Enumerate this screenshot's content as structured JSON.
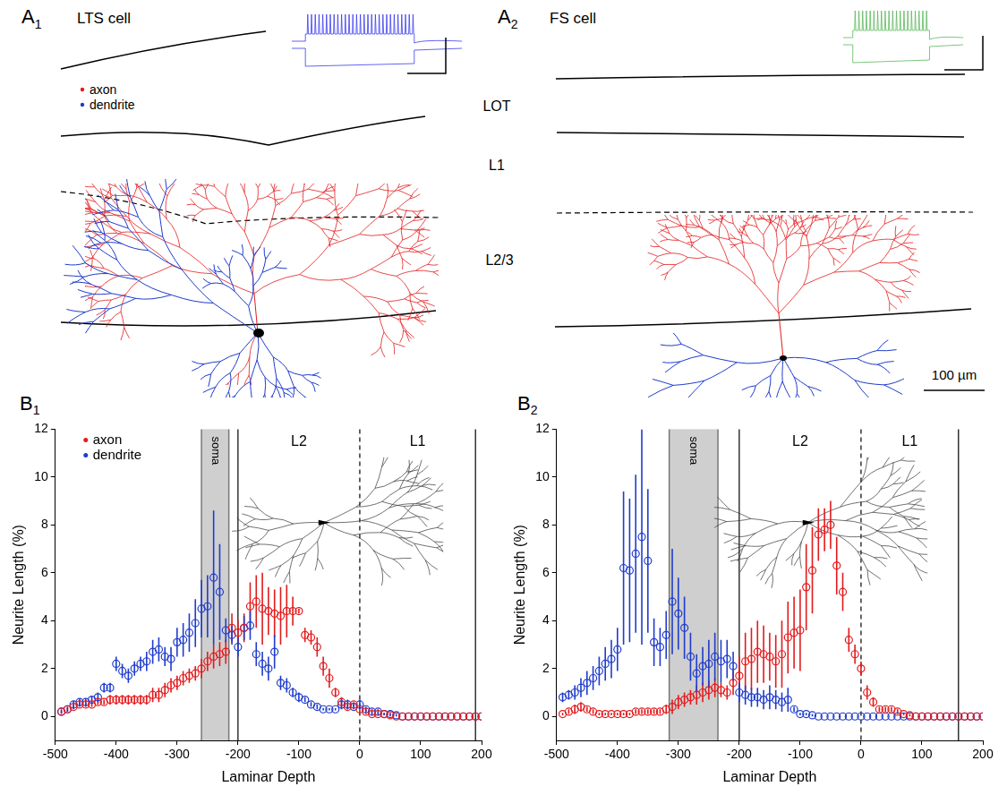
{
  "figure": {
    "panels": [
      {
        "label": "A1",
        "title": "LTS cell",
        "key": [
          {
            "label": "axon",
            "color": "#e31a1c"
          },
          {
            "label": "dendrite",
            "color": "#1f3ccc"
          }
        ]
      },
      {
        "label": "A2",
        "title": "FS cell"
      }
    ],
    "layers": [
      "LOT",
      "L1",
      "L2/3"
    ],
    "scale_bar": "100 µm"
  },
  "chart_data": [
    {
      "type": "scatter",
      "panel": "B1",
      "xlabel": "Laminar Depth",
      "ylabel": "Neurite Length (%)",
      "xlim": [
        -500,
        200
      ],
      "xticks": [
        -500,
        -400,
        -300,
        -200,
        -100,
        0,
        100,
        200
      ],
      "ylim": [
        -1,
        12
      ],
      "yticks": [
        0,
        2,
        4,
        6,
        8,
        10,
        12
      ],
      "grid": false,
      "legend": "upper left",
      "bands": [
        {
          "label": "soma",
          "range": [
            -260,
            -215
          ]
        }
      ],
      "boundaries": [
        {
          "x": -200,
          "line_style": "solid"
        },
        {
          "x": 0,
          "line_style": "dashed"
        },
        {
          "x": 190,
          "line_style": "solid"
        }
      ],
      "layers": [
        "L2",
        "L1"
      ],
      "x": [
        -490,
        -480,
        -470,
        -460,
        -450,
        -440,
        -430,
        -420,
        -410,
        -400,
        -390,
        -380,
        -370,
        -360,
        -350,
        -340,
        -330,
        -320,
        -310,
        -300,
        -290,
        -280,
        -270,
        -260,
        -250,
        -240,
        -230,
        -220,
        -210,
        -200,
        -190,
        -180,
        -170,
        -160,
        -150,
        -140,
        -130,
        -120,
        -110,
        -100,
        -90,
        -80,
        -70,
        -60,
        -50,
        -40,
        -30,
        -20,
        -10,
        0,
        10,
        20,
        30,
        40,
        50,
        60,
        70,
        80,
        90,
        100,
        110,
        120,
        130,
        140,
        150,
        160,
        170,
        180,
        190,
        200
      ],
      "series": [
        {
          "name": "axon",
          "color": "#e31a1c",
          "marker": "circle",
          "values": [
            0.2,
            0.3,
            0.4,
            0.5,
            0.5,
            0.5,
            0.6,
            0.6,
            0.7,
            0.7,
            0.7,
            0.7,
            0.7,
            0.7,
            0.7,
            0.9,
            0.9,
            1.1,
            1.3,
            1.4,
            1.6,
            1.7,
            1.8,
            2.0,
            2.3,
            2.5,
            2.6,
            2.7,
            3.7,
            3.5,
            3.7,
            4.6,
            4.8,
            4.5,
            4.4,
            4.3,
            4.2,
            4.4,
            4.4,
            4.4,
            3.4,
            3.3,
            2.9,
            2.1,
            1.6,
            1.0,
            0.6,
            0.4,
            0.5,
            0.3,
            0.2,
            0.1,
            0.1,
            0.1,
            0.05,
            0,
            0,
            0,
            0,
            0,
            0,
            0,
            0,
            0,
            0,
            0,
            0,
            0,
            0,
            0
          ],
          "errors": [
            0.05,
            0.1,
            0.1,
            0.1,
            0.1,
            0.1,
            0.1,
            0.1,
            0.2,
            0.2,
            0.2,
            0.2,
            0.2,
            0.2,
            0.2,
            0.3,
            0.3,
            0.3,
            0.3,
            0.3,
            0.3,
            0.3,
            0.3,
            0.4,
            0.4,
            0.5,
            0.5,
            0.5,
            0.6,
            0.5,
            0.6,
            1.0,
            1.1,
            1.5,
            1.0,
            1.0,
            1.2,
            1.1,
            0.6,
            0.1,
            0.3,
            0.3,
            0.4,
            0.4,
            0.4,
            0.2,
            0.2,
            0.1,
            0.1,
            0.1,
            0.1,
            0.05,
            0.05,
            0.05,
            0.05,
            0,
            0,
            0,
            0,
            0,
            0,
            0,
            0,
            0,
            0,
            0,
            0,
            0,
            0,
            0
          ]
        },
        {
          "name": "dendrite",
          "color": "#1f3ccc",
          "marker": "circle",
          "values": [
            0.2,
            0.3,
            0.5,
            0.6,
            0.6,
            0.7,
            0.8,
            1.2,
            1.2,
            2.2,
            1.9,
            1.7,
            2.0,
            2.2,
            2.3,
            2.7,
            2.8,
            2.5,
            2.4,
            3.1,
            3.2,
            3.5,
            3.9,
            4.5,
            4.6,
            5.8,
            5.2,
            3.6,
            3.4,
            2.9,
            3.7,
            3.8,
            2.6,
            2.2,
            2.0,
            2.7,
            1.4,
            1.3,
            1.0,
            0.8,
            0.7,
            0.5,
            0.4,
            0.3,
            0.3,
            0.3,
            0.5,
            0.5,
            0.4,
            0.5,
            0.3,
            0.2,
            0.2,
            0.1,
            0.1,
            0.05,
            0,
            0,
            0,
            0,
            0,
            0,
            0,
            0,
            0,
            0,
            0,
            0,
            0,
            0
          ],
          "errors": [
            0.1,
            0.1,
            0.15,
            0.15,
            0.15,
            0.15,
            0.2,
            0.2,
            0.2,
            0.3,
            0.3,
            0.3,
            0.3,
            0.3,
            0.4,
            0.5,
            0.5,
            0.4,
            0.5,
            0.6,
            0.7,
            0.8,
            1.0,
            1.2,
            1.3,
            2.8,
            2.0,
            0.5,
            0.4,
            0.4,
            0.5,
            0.6,
            0.5,
            0.5,
            0.5,
            0.7,
            0.3,
            0.3,
            0.2,
            0.2,
            0.1,
            0.1,
            0.1,
            0.05,
            0.05,
            0.05,
            0.2,
            0.2,
            0.1,
            0.2,
            0.1,
            0.1,
            0.1,
            0.05,
            0.05,
            0.05,
            0,
            0,
            0,
            0,
            0,
            0,
            0,
            0,
            0,
            0,
            0,
            0,
            0,
            0
          ]
        }
      ]
    },
    {
      "type": "scatter",
      "panel": "B2",
      "xlabel": "Laminar Depth",
      "ylabel": "Neurite Length (%)",
      "xlim": [
        -500,
        200
      ],
      "xticks": [
        -500,
        -400,
        -300,
        -200,
        -100,
        0,
        100,
        200
      ],
      "ylim": [
        -1,
        12
      ],
      "yticks": [
        0,
        2,
        4,
        6,
        8,
        10,
        12
      ],
      "grid": false,
      "bands": [
        {
          "label": "soma",
          "range": [
            -315,
            -235
          ]
        }
      ],
      "boundaries": [
        {
          "x": -200,
          "line_style": "solid"
        },
        {
          "x": 0,
          "line_style": "dashed"
        },
        {
          "x": 160,
          "line_style": "solid"
        }
      ],
      "layers": [
        "L2",
        "L1"
      ],
      "x": [
        -490,
        -480,
        -470,
        -460,
        -450,
        -440,
        -430,
        -420,
        -410,
        -400,
        -390,
        -380,
        -370,
        -360,
        -350,
        -340,
        -330,
        -320,
        -310,
        -300,
        -290,
        -280,
        -270,
        -260,
        -250,
        -240,
        -230,
        -220,
        -210,
        -200,
        -190,
        -180,
        -170,
        -160,
        -150,
        -140,
        -130,
        -120,
        -110,
        -100,
        -90,
        -80,
        -70,
        -60,
        -50,
        -40,
        -30,
        -20,
        -10,
        0,
        10,
        20,
        30,
        40,
        50,
        60,
        70,
        80,
        90,
        100,
        110,
        120,
        130,
        140,
        150,
        160,
        170,
        180,
        190,
        200
      ],
      "series": [
        {
          "name": "axon",
          "color": "#e31a1c",
          "marker": "circle",
          "values": [
            0.1,
            0.2,
            0.3,
            0.4,
            0.3,
            0.2,
            0.1,
            0.1,
            0.1,
            0.1,
            0.1,
            0.1,
            0.2,
            0.2,
            0.2,
            0.2,
            0.2,
            0.3,
            0.4,
            0.6,
            0.7,
            0.8,
            0.9,
            1.0,
            1.1,
            1.2,
            1.1,
            1.0,
            1.4,
            1.7,
            2.3,
            2.4,
            2.7,
            2.6,
            2.5,
            2.3,
            2.6,
            3.3,
            3.5,
            3.6,
            5.4,
            6.1,
            7.6,
            7.8,
            8.0,
            6.3,
            5.2,
            3.2,
            2.6,
            2.0,
            1.0,
            0.6,
            0.3,
            0.3,
            0.3,
            0.2,
            0.1,
            0.05,
            0,
            0,
            0,
            0,
            0,
            0,
            0,
            0,
            0,
            0,
            0,
            0
          ],
          "errors": [
            0.05,
            0.1,
            0.2,
            0.2,
            0.1,
            0.1,
            0.05,
            0.05,
            0.05,
            0.05,
            0.05,
            0.05,
            0.1,
            0.1,
            0.1,
            0.1,
            0.1,
            0.2,
            0.3,
            0.3,
            0.3,
            0.3,
            0.4,
            0.4,
            0.4,
            0.4,
            0.3,
            0.3,
            0.5,
            0.8,
            1.2,
            1.3,
            1.3,
            1.2,
            1.0,
            1.1,
            1.4,
            1.5,
            1.5,
            1.7,
            1.8,
            1.8,
            1.1,
            0.9,
            1.0,
            1.2,
            0.8,
            0.5,
            0.4,
            0.3,
            0.3,
            0.2,
            0.1,
            0.1,
            0.1,
            0.1,
            0.05,
            0.05,
            0,
            0,
            0,
            0,
            0,
            0,
            0,
            0,
            0,
            0,
            0,
            0
          ]
        },
        {
          "name": "dendrite",
          "color": "#1f3ccc",
          "marker": "circle",
          "values": [
            0.8,
            0.9,
            1.0,
            1.2,
            1.4,
            1.6,
            1.9,
            2.2,
            2.4,
            2.8,
            6.2,
            6.1,
            6.8,
            7.5,
            6.5,
            3.1,
            2.9,
            3.4,
            4.8,
            4.3,
            3.7,
            2.5,
            1.8,
            2.1,
            2.2,
            2.5,
            2.3,
            2.4,
            2.1,
            1.0,
            0.9,
            0.8,
            0.8,
            0.7,
            0.8,
            0.7,
            0.6,
            0.7,
            0.3,
            0.1,
            0.1,
            0.05,
            0,
            0,
            0,
            0,
            0,
            0,
            0,
            0,
            0,
            0,
            0,
            0,
            0,
            0,
            0,
            0,
            0,
            0,
            0,
            0,
            0,
            0,
            0,
            0,
            0,
            0,
            0,
            0
          ],
          "errors": [
            0.2,
            0.2,
            0.3,
            0.4,
            0.5,
            0.5,
            0.6,
            0.7,
            0.8,
            0.9,
            3.2,
            3.0,
            3.3,
            4.5,
            3.0,
            1.0,
            0.8,
            1.0,
            2.2,
            1.5,
            1.3,
            1.0,
            0.8,
            0.8,
            1.0,
            1.0,
            0.9,
            0.8,
            0.6,
            0.4,
            0.4,
            0.4,
            0.4,
            0.4,
            0.5,
            0.4,
            0.4,
            0.5,
            0.1,
            0.05,
            0.05,
            0.05,
            0,
            0,
            0,
            0,
            0,
            0,
            0,
            0,
            0,
            0,
            0,
            0,
            0,
            0,
            0,
            0,
            0,
            0,
            0,
            0,
            0,
            0,
            0,
            0,
            0,
            0,
            0,
            0
          ]
        }
      ]
    }
  ]
}
